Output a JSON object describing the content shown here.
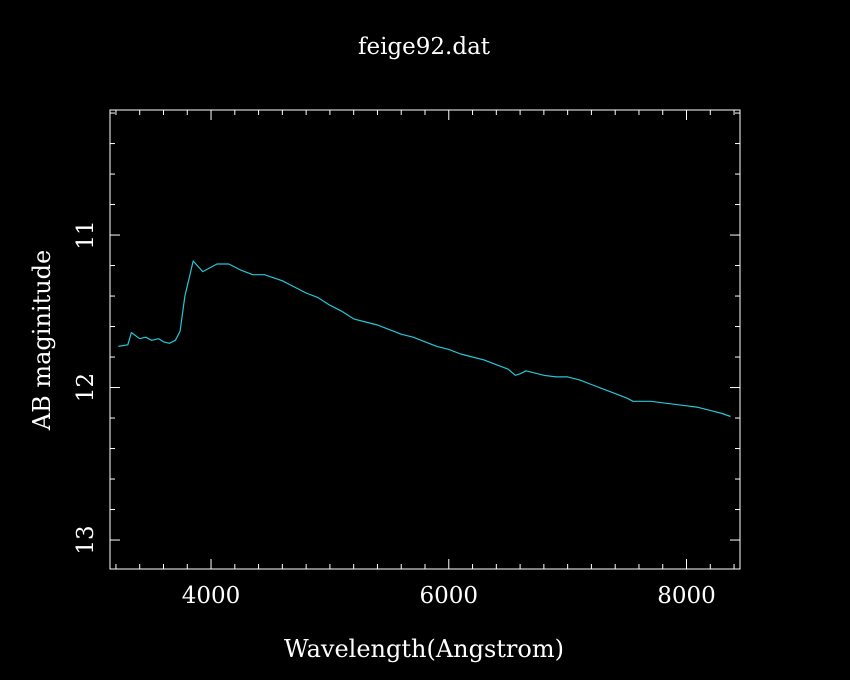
{
  "chart_data": {
    "type": "line",
    "title": "feige92.dat",
    "xlabel": "Wavelength(Angstrom)",
    "ylabel": "AB maginitude",
    "xlim": [
      3150,
      8450
    ],
    "ylim": [
      10.18,
      13.19
    ],
    "y_inverted": true,
    "x_ticks": [
      4000,
      6000,
      8000
    ],
    "y_ticks": [
      11,
      12,
      13
    ],
    "x_minor_step": 200,
    "y_minor_step": 0.2,
    "grid": false,
    "series": [
      {
        "color": "#22c8d8",
        "x": [
          3220,
          3300,
          3330,
          3400,
          3450,
          3500,
          3560,
          3600,
          3650,
          3700,
          3740,
          3780,
          3850,
          3930,
          4050,
          4150,
          4250,
          4350,
          4450,
          4600,
          4700,
          4800,
          4900,
          5000,
          5100,
          5200,
          5300,
          5400,
          5500,
          5600,
          5700,
          5800,
          5900,
          6000,
          6100,
          6200,
          6300,
          6400,
          6500,
          6560,
          6600,
          6650,
          6700,
          6800,
          6900,
          7000,
          7100,
          7200,
          7300,
          7400,
          7500,
          7550,
          7600,
          7700,
          7800,
          7900,
          8000,
          8100,
          8200,
          8300,
          8370
        ],
        "y": [
          11.73,
          11.72,
          11.64,
          11.68,
          11.67,
          11.69,
          11.68,
          11.7,
          11.71,
          11.69,
          11.63,
          11.4,
          11.17,
          11.24,
          11.19,
          11.19,
          11.23,
          11.26,
          11.26,
          11.3,
          11.34,
          11.38,
          11.41,
          11.46,
          11.5,
          11.55,
          11.57,
          11.59,
          11.62,
          11.65,
          11.67,
          11.7,
          11.73,
          11.75,
          11.78,
          11.8,
          11.82,
          11.85,
          11.88,
          11.92,
          11.91,
          11.89,
          11.9,
          11.92,
          11.93,
          11.93,
          11.95,
          11.98,
          12.01,
          12.04,
          12.07,
          12.09,
          12.09,
          12.09,
          12.1,
          12.11,
          12.12,
          12.13,
          12.15,
          12.17,
          12.19
        ]
      }
    ]
  }
}
